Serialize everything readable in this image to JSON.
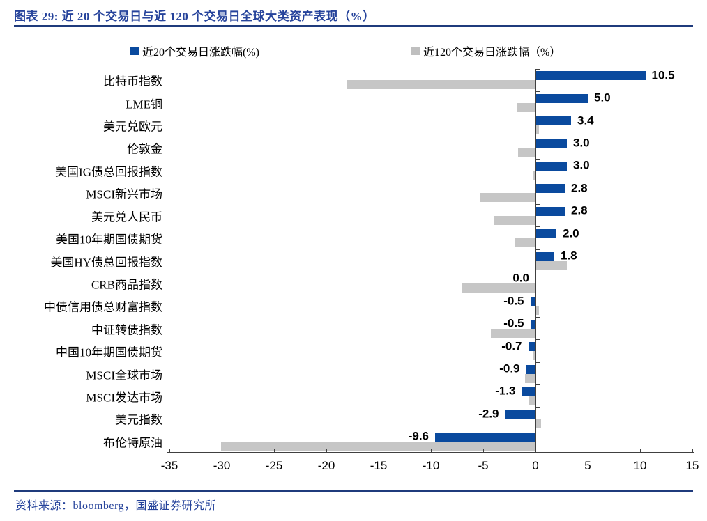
{
  "title": "图表 29: 近 20 个交易日与近 120 个交易日全球大类资产表现（%）",
  "footer": {
    "text": "资料来源：bloomberg，国盛证券研究所"
  },
  "colors": {
    "accent_text": "#26439B",
    "rule_line": "#1F3B7C",
    "bar_blue": "#0A4A9E",
    "bar_gray": "#C6C6C6",
    "axis": "#404040"
  },
  "legend": {
    "items": [
      {
        "label": "近20个交易日涨跌幅(%)",
        "color": "#0A4A9E"
      },
      {
        "label": "近120个交易日涨跌幅（%）",
        "color": "#BFBFBF"
      }
    ]
  },
  "chart_data": {
    "type": "bar",
    "orientation": "horizontal",
    "title": "近 20 个交易日与近 120 个交易日全球大类资产表现（%）",
    "categories": [
      "比特币指数",
      "LME铜",
      "美元兑欧元",
      "伦敦金",
      "美国IG债总回报指数",
      "MSCI新兴市场",
      "美元兑人民币",
      "美国10年期国债期货",
      "美国HY债总回报指数",
      "CRB商品指数",
      "中债信用债总财富指数",
      "中证转债指数",
      "中国10年期国债期货",
      "MSCI全球市场",
      "MSCI发达市场",
      "美元指数",
      "布伦特原油"
    ],
    "series": [
      {
        "name": "近20个交易日涨跌幅(%)",
        "color": "#0A4A9E",
        "values": [
          10.5,
          5.0,
          3.4,
          3.0,
          3.0,
          2.8,
          2.8,
          2.0,
          1.8,
          0.0,
          -0.5,
          -0.5,
          -0.7,
          -0.9,
          -1.3,
          -2.9,
          -9.6
        ]
      },
      {
        "name": "近120个交易日涨跌幅（%）",
        "color": "#C6C6C6",
        "values": [
          -18.0,
          -1.8,
          0.3,
          -1.7,
          -0.2,
          -5.3,
          -4.0,
          -2.0,
          3.0,
          -7.0,
          0.3,
          -4.3,
          -0.2,
          -1.0,
          -0.6,
          0.5,
          -30.1
        ]
      }
    ],
    "value_labels": [
      "10.5",
      "5.0",
      "3.4",
      "3.0",
      "3.0",
      "2.8",
      "2.8",
      "2.0",
      "1.8",
      "0.0",
      "-0.5",
      "-0.5",
      "-0.7",
      "-0.9",
      "-1.3",
      "-2.9",
      "-9.6"
    ],
    "value_labels_series": "近20个交易日涨跌幅(%)",
    "xlim": [
      -35,
      15
    ],
    "xticks": [
      -35,
      -30,
      -25,
      -20,
      -15,
      -10,
      -5,
      0,
      5,
      10,
      15
    ],
    "grid": false,
    "legend_position": "top"
  }
}
